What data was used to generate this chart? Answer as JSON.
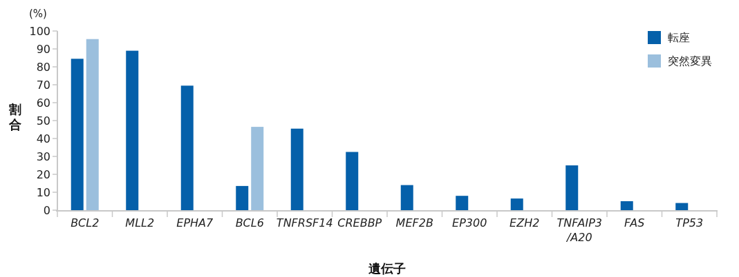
{
  "chart_data": {
    "type": "bar",
    "xlabel": "遺伝子",
    "ylabel": "割合",
    "annotations": [
      "(%)"
    ],
    "categories": [
      "BCL2",
      "MLL2",
      "EPHA7",
      "BCL6",
      "TNFRSF14",
      "CREBBP",
      "MEF2B",
      "EP300",
      "EZH2",
      "TNFAIP3\n/A20",
      "FAS",
      "TP53"
    ],
    "series": [
      {
        "name": "転座",
        "color": "#0560aa",
        "values": [
          84.5,
          89,
          69.5,
          13.5,
          45.5,
          32.5,
          14,
          8,
          6.5,
          25,
          5,
          4
        ]
      },
      {
        "name": "突然変異",
        "color": "#9bbfdd",
        "values": [
          95.5,
          null,
          null,
          46.5,
          null,
          null,
          null,
          null,
          null,
          null,
          null,
          null
        ]
      }
    ],
    "ylim": [
      0,
      100
    ],
    "yticks": [
      0,
      10,
      20,
      30,
      40,
      50,
      60,
      70,
      80,
      90,
      100
    ],
    "legend": "top right"
  }
}
